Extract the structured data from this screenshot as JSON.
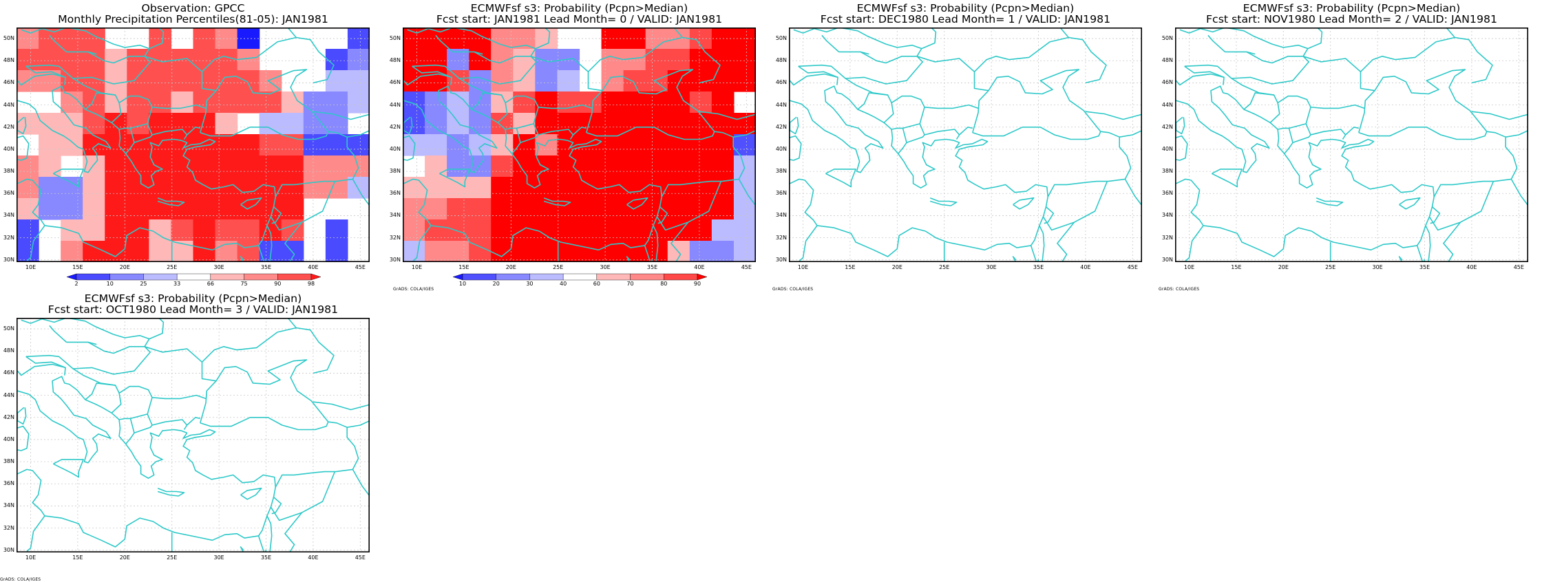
{
  "credit": "GrADS: COLA/IGES",
  "lat_labels": [
    "50N",
    "48N",
    "46N",
    "44N",
    "42N",
    "40N",
    "38N",
    "36N",
    "34N",
    "32N",
    "30N"
  ],
  "lon_labels": [
    "10E",
    "15E",
    "20E",
    "25E",
    "30E",
    "35E",
    "40E",
    "45E"
  ],
  "colors": {
    "coast": "#2ec8c8",
    "grid": "#c8c8c8",
    "obs_scale": [
      "#1a1aff",
      "#4a4aff",
      "#8888ff",
      "#bbbbff",
      "#ffffff",
      "#ffb8b8",
      "#ff8a8a",
      "#ff5050",
      "#ff1a1a"
    ],
    "fc_scale": [
      "#1a1aff",
      "#5050ff",
      "#8888ff",
      "#bbbbff",
      "#ffffff",
      "#ffb8b8",
      "#ff8888",
      "#ff4848",
      "#ff0000"
    ]
  },
  "panels": [
    {
      "title1": "Observation: GPCC",
      "title2": "Monthly Precipitation Percentiles(81-05): JAN1981",
      "colorbar": {
        "labels": [
          "2",
          "10",
          "25",
          "33",
          "66",
          "75",
          "90",
          "98"
        ]
      },
      "grid": [
        "6777447476044441",
        "7777577777644412",
        "6677577777764433",
        "4467577577775223",
        "5557878885433224",
        "4558888888877111",
        "6545888888888666",
        "6225888888888663",
        "5225888888888444",
        "1455885787787414",
        "1468885586711414"
      ]
    },
    {
      "title1": "ECMWFsf s3: Probability (Pcpn>Median)",
      "title2": "Fcst start: JAN1981    Lead Month= 0 / VALID: JAN1981",
      "colorbar": {
        "labels": [
          "10",
          "20",
          "30",
          "40",
          "60",
          "70",
          "80",
          "90"
        ]
      },
      "grid": [
        "8888665448866788",
        "8828652246677888",
        "8872652346778888",
        "1232578778888784",
        "1232758888888888",
        "3323586888888881",
        "4522788888888883",
        "5555888888888883",
        "6677888888888883",
        "6777888888888833",
        "3667888888885223"
      ]
    },
    {
      "title1": "ECMWFsf s3: Probability (Pcpn>Median)",
      "title2": "Fcst start: DEC1980    Lead Month= 1 / VALID: JAN1981",
      "colorbar": null,
      "grid": null
    },
    {
      "title1": "ECMWFsf s3: Probability (Pcpn>Median)",
      "title2": "Fcst start: NOV1980    Lead Month= 2 / VALID: JAN1981",
      "colorbar": null,
      "grid": null
    },
    {
      "title1": "ECMWFsf s3: Probability (Pcpn>Median)",
      "title2": "Fcst start: OCT1980    Lead Month= 3 / VALID: JAN1981",
      "colorbar": null,
      "grid": null
    }
  ]
}
